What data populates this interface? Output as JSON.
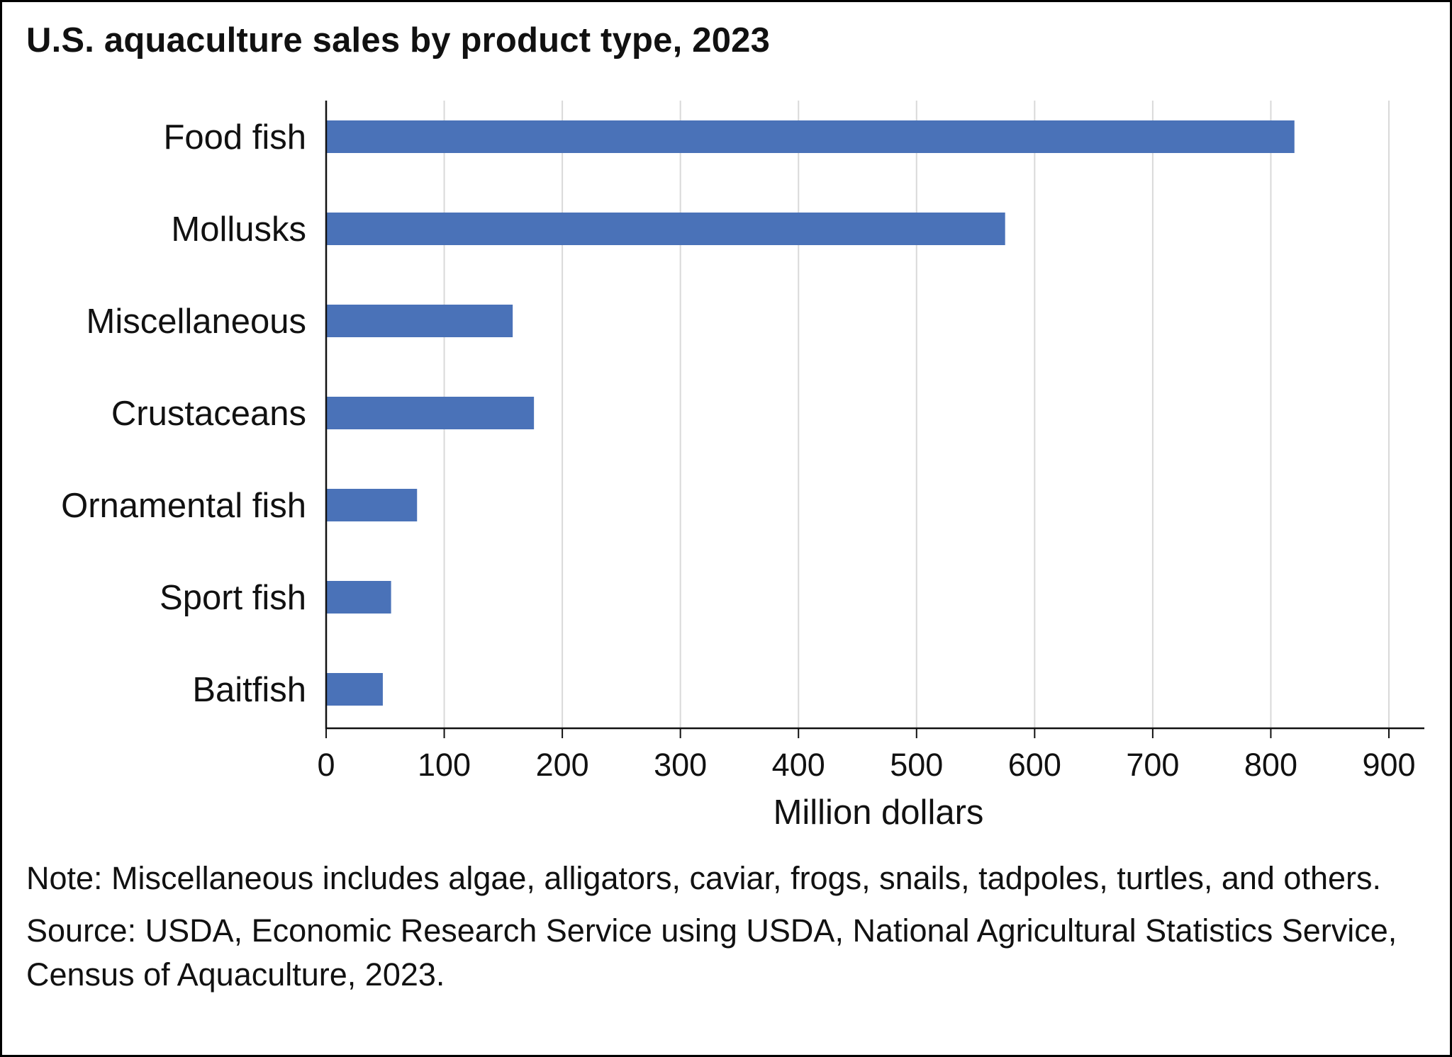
{
  "chart_data": {
    "type": "bar",
    "orientation": "horizontal",
    "title": "U.S. aquaculture sales by product type, 2023",
    "categories": [
      "Food fish",
      "Mollusks",
      "Miscellaneous",
      "Crustaceans",
      "Ornamental fish",
      "Sport fish",
      "Baitfish"
    ],
    "values": [
      820,
      575,
      158,
      176,
      77,
      55,
      48
    ],
    "xlabel": "Million dollars",
    "ylabel": "",
    "xlim": [
      0,
      900
    ],
    "xticks": [
      0,
      100,
      200,
      300,
      400,
      500,
      600,
      700,
      800,
      900
    ],
    "grid": "vertical",
    "legend": "none",
    "bar_color": "#4a72b8",
    "grid_color": "#d9d9d9"
  },
  "notes": {
    "note": "Note: Miscellaneous includes algae, alligators, caviar, frogs, snails, tadpoles, turtles, and others.",
    "source": "Source: USDA, Economic Research Service using USDA, National Agricultural Statistics Service, Census of Aquaculture, 2023."
  }
}
